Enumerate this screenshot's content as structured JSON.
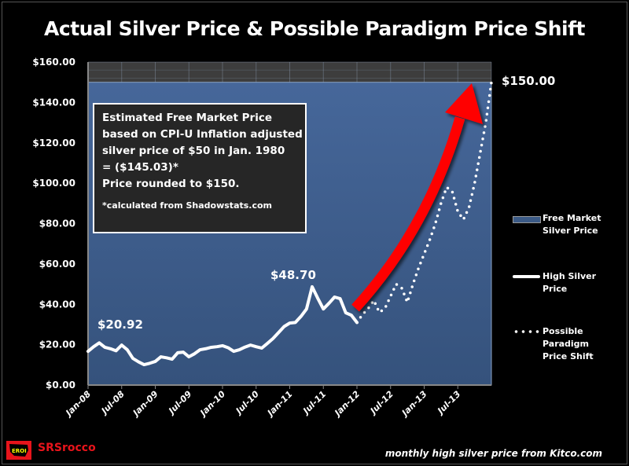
{
  "title": "Actual Silver Price & Possible Paradigm Price Shift",
  "chart_data": {
    "type": "line",
    "title": "Actual Silver Price & Possible Paradigm Price Shift",
    "ylim": [
      0,
      160
    ],
    "y_ticks": [
      "$0.00",
      "$20.00",
      "$40.00",
      "$60.00",
      "$80.00",
      "$100.00",
      "$120.00",
      "$140.00",
      "$160.00"
    ],
    "x_ticks": [
      "Jan-08",
      "Jul-08",
      "Jan-09",
      "Jul-09",
      "Jan-10",
      "Jul-10",
      "Jan-11",
      "Jul-11",
      "Jan-12",
      "Jul-12",
      "Jan-13",
      "Jul-13"
    ],
    "grid": true,
    "legend_position": "right",
    "series": [
      {
        "name": "Free Market Silver Price",
        "style": "area",
        "color": "#3b5a86",
        "value": 150
      },
      {
        "name": "High Silver Price",
        "style": "solid",
        "color": "#ffffff",
        "values": [
          16.7,
          19,
          20.9,
          18.7,
          18,
          17,
          19.8,
          17.5,
          13.2,
          11.5,
          10.1,
          10.8,
          11.7,
          14,
          13.5,
          12.8,
          16,
          16.3,
          14,
          15.5,
          17.5,
          18,
          18.7,
          19,
          19.5,
          18.5,
          16.7,
          17.5,
          18.8,
          19.8,
          19,
          18.3,
          20.6,
          23,
          26,
          29,
          30.7,
          31,
          34,
          37.7,
          48.7,
          43,
          37.7,
          40.5,
          43.6,
          42.8,
          35.8,
          34.6,
          31
        ]
      },
      {
        "name": "Possible Paradigm Price Shift",
        "style": "dotted",
        "color": "#ffffff",
        "start_index": 48,
        "values": [
          31,
          35,
          38,
          42,
          36,
          38,
          44,
          50,
          48,
          41,
          50,
          58,
          65,
          72,
          80,
          90,
          98,
          96,
          86,
          82,
          88,
          100,
          115,
          130,
          150
        ]
      }
    ],
    "annotations": [
      "$20.92",
      "$48.70",
      "$150.00"
    ]
  },
  "note": {
    "lines": [
      "Estimated Free Market Price",
      "based on CPI-U Inflation adjusted",
      "silver price of $50 in Jan. 1980",
      " = ($145.03)*",
      "Price rounded to $150."
    ],
    "footnote": "*calculated from Shadowstats.com"
  },
  "legend": [
    "Free Market Silver Price",
    "High Silver Price",
    "Possible Paradigm Price Shift"
  ],
  "source": "monthly high silver price from Kitco.com",
  "brand": {
    "name": "SRSrocco",
    "logo_text": "EROI"
  },
  "colors": {
    "area": "#3b5a86",
    "arrow": "#ff0000",
    "brand": "#e8141b"
  }
}
